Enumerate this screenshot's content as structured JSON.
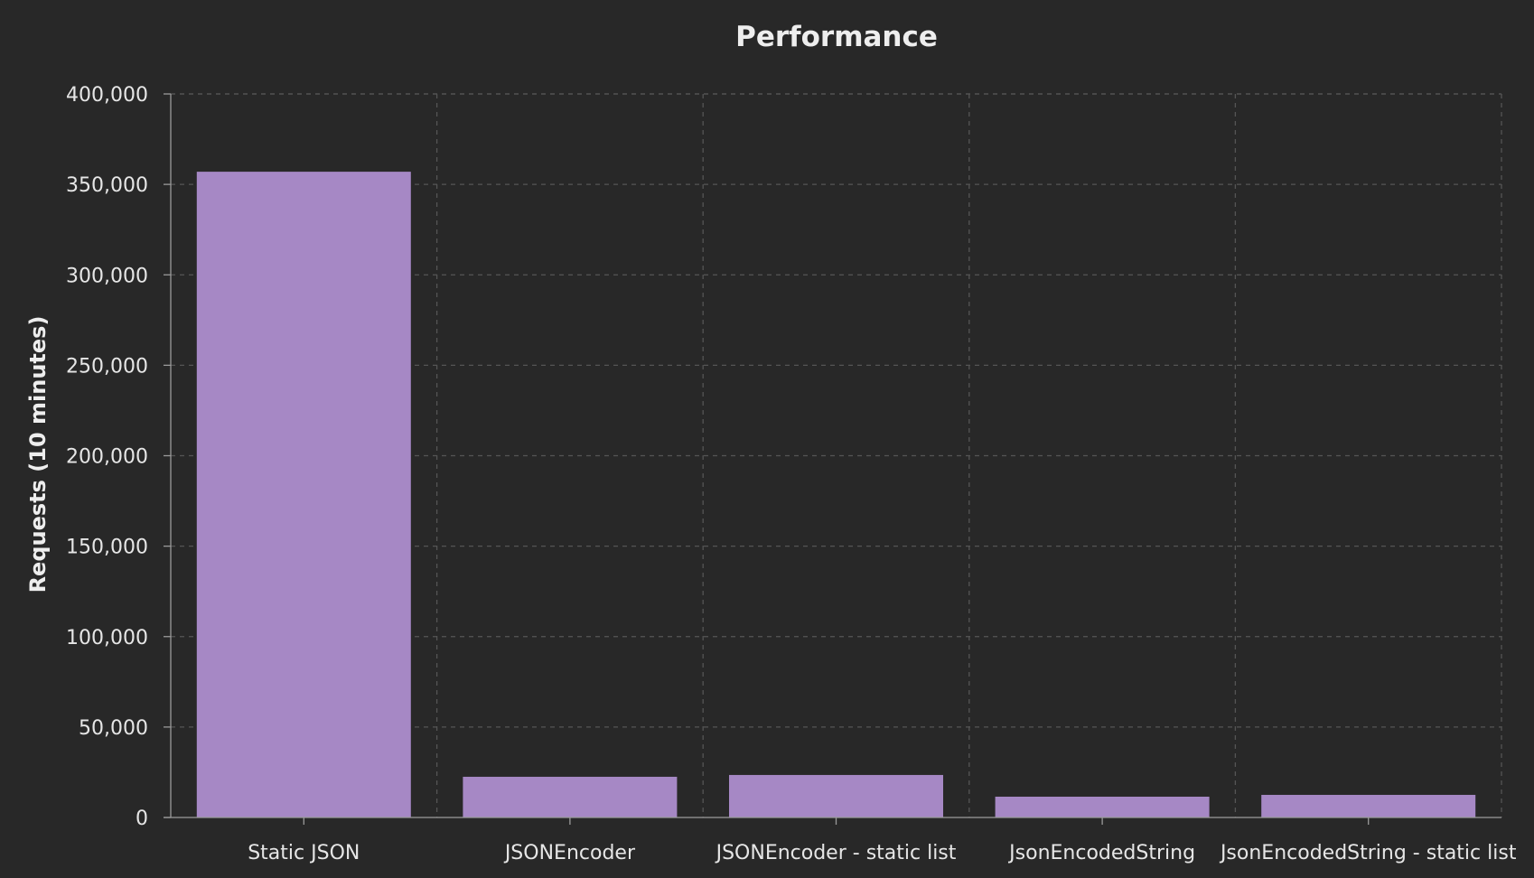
{
  "colors": {
    "background": "#282828",
    "bar": "#a688c5",
    "grid": "#555555",
    "axis": "#9a9a9a",
    "text": "#e6e6e6"
  },
  "chart_data": {
    "type": "bar",
    "title": "Performance",
    "xlabel": "",
    "ylabel": "Requests (10 minutes)",
    "categories": [
      "Static JSON",
      "JSONEncoder",
      "JSONEncoder - static list",
      "JsonEncodedString",
      "JsonEncodedString - static list"
    ],
    "values": [
      357000,
      22500,
      23500,
      11500,
      12500
    ],
    "ylim": [
      0,
      400000
    ],
    "yticks": [
      0,
      50000,
      100000,
      150000,
      200000,
      250000,
      300000,
      350000,
      400000
    ],
    "ytick_labels": [
      "0",
      "50,000",
      "100,000",
      "150,000",
      "200,000",
      "250,000",
      "300,000",
      "350,000",
      "400,000"
    ],
    "grid": true,
    "legend": "none"
  }
}
